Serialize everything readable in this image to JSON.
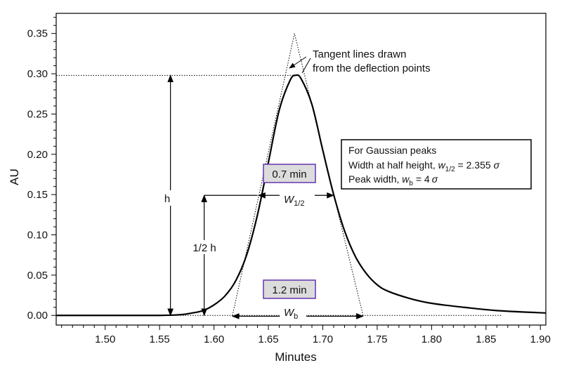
{
  "chart_data": {
    "type": "line",
    "xlabel": "Minutes",
    "ylabel": "AU",
    "xlim": [
      1.455,
      1.905
    ],
    "ylim": [
      -0.012,
      0.375
    ],
    "x_ticks": [
      "1.50",
      "1.55",
      "1.60",
      "1.65",
      "1.70",
      "1.75",
      "1.80",
      "1.85",
      "1.90"
    ],
    "y_ticks": [
      "0.00",
      "0.05",
      "0.10",
      "0.15",
      "0.20",
      "0.25",
      "0.30",
      "0.35"
    ],
    "grid": false,
    "series": [
      {
        "peak": {
          "x": 1.675,
          "y": 0.298
        },
        "x": [
          1.455,
          1.5,
          1.55,
          1.57,
          1.58,
          1.59,
          1.6,
          1.61,
          1.62,
          1.63,
          1.64,
          1.65,
          1.66,
          1.67,
          1.675,
          1.68,
          1.69,
          1.7,
          1.71,
          1.72,
          1.73,
          1.74,
          1.75,
          1.76,
          1.78,
          1.8,
          1.83,
          1.86,
          1.905
        ],
        "y": [
          0.0,
          0.0,
          0.0,
          0.001,
          0.003,
          0.006,
          0.013,
          0.024,
          0.043,
          0.075,
          0.125,
          0.19,
          0.255,
          0.292,
          0.298,
          0.294,
          0.262,
          0.205,
          0.15,
          0.105,
          0.073,
          0.052,
          0.038,
          0.03,
          0.021,
          0.015,
          0.01,
          0.006,
          0.003
        ]
      }
    ],
    "lines": {
      "tangent_apex": {
        "x": 1.674,
        "y": 0.35
      },
      "tangent_left_base": {
        "x": 1.617,
        "y": 0.0
      },
      "tangent_right_base": {
        "x": 1.737,
        "y": 0.0
      },
      "peak_height_line": {
        "y": 0.298,
        "x_from": 1.455,
        "x_to": 1.675
      },
      "half_height_line": {
        "y": 0.149,
        "x_from": 1.591,
        "x_to": 1.64
      },
      "baseline_dotted": {
        "y": 0.0,
        "x_from": 1.56,
        "x_to": 1.865
      },
      "h_arrow": {
        "x": 1.56,
        "y_from": 0.0,
        "y_to": 0.298
      },
      "half_h_arrow": {
        "x": 1.591,
        "y_from": 0.0,
        "y_to": 0.149
      },
      "w_half_arrow": {
        "y": 0.149,
        "x_from": 1.641,
        "x_to": 1.71
      },
      "w_b_arrow": {
        "y": -0.001,
        "x_from": 1.617,
        "x_to": 1.737
      }
    },
    "annotations": {
      "tangent_label_line1": "Tangent lines drawn",
      "tangent_label_line2": "from the deflection points",
      "h_label": "h",
      "half_h_label": "1/2 h",
      "w_half_main": "W",
      "w_half_sub": "1/2",
      "w_b_main": "W",
      "w_b_sub": "b",
      "box_top": "0.7 min",
      "box_bottom": "1.2 min",
      "info_line1": "For Gaussian peaks",
      "info_line2_pre": "Width at half height, ",
      "info_line2_var": "w",
      "info_line2_sub": "1/2",
      "info_line2_post": " = 2.355 ",
      "info_line2_sigma": "σ",
      "info_line3_pre": "Peak width, ",
      "info_line3_var": "w",
      "info_line3_sub": "b",
      "info_line3_post": " = 4",
      "info_line3_sigma": "σ"
    },
    "colors": {
      "curve": "#000000",
      "box_border": "#6b3fb3",
      "box_fill": "#dcdcdc"
    }
  }
}
